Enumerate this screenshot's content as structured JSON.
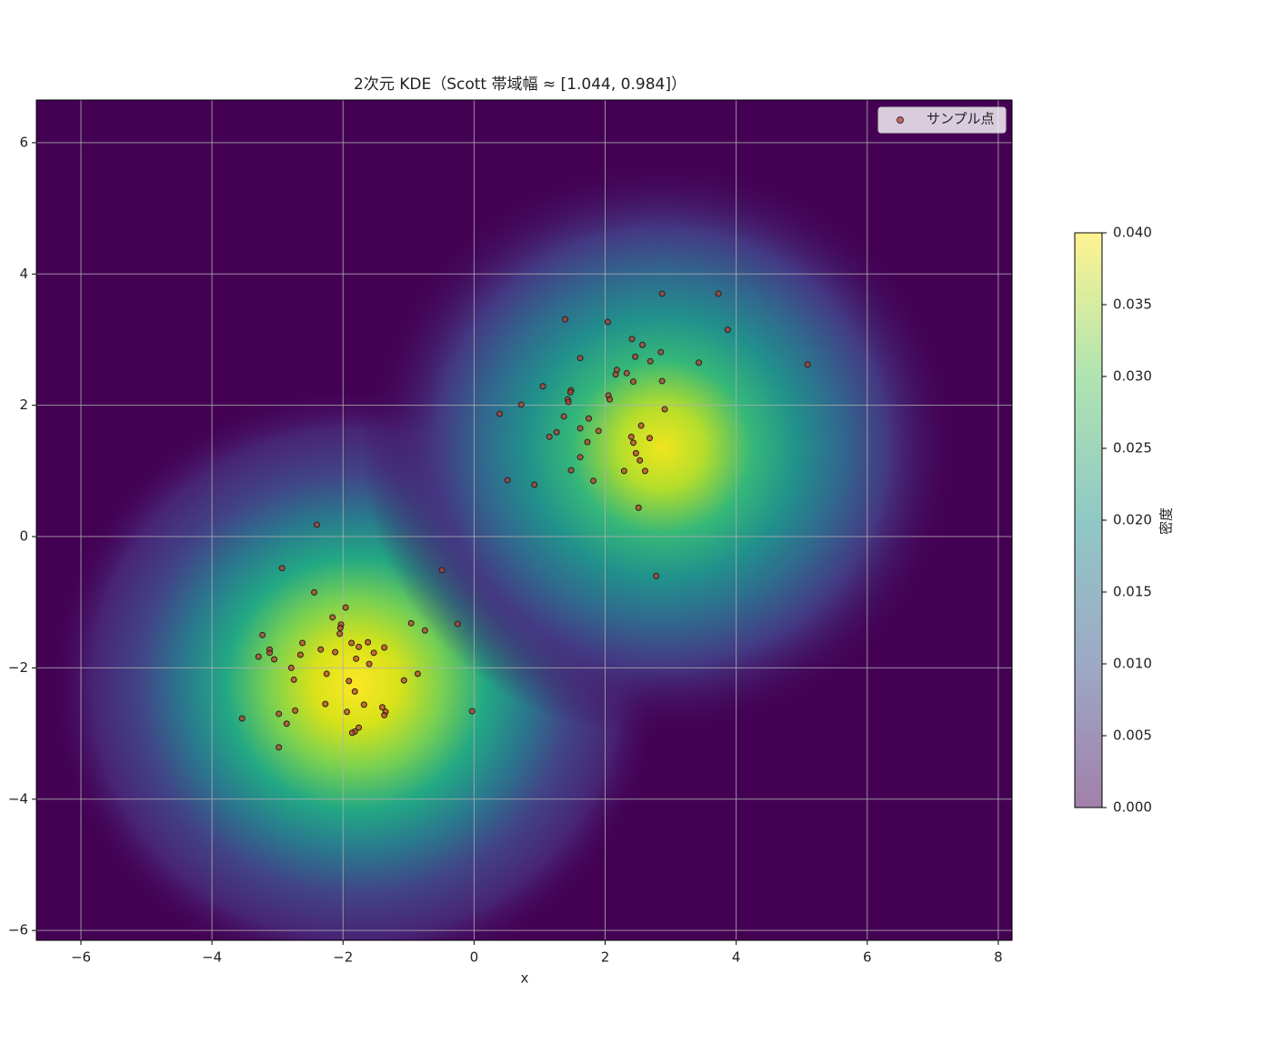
{
  "chart_data": {
    "type": "scatter",
    "title": "2次元 KDE（Scott 帯域幅 ≈ [1.044, 0.984]）",
    "x_label": "x",
    "xlim": [
      -6.68,
      8.21
    ],
    "ylim": [
      -6.15,
      6.65
    ],
    "xticks": [
      {
        "value": -6,
        "label": "−6"
      },
      {
        "value": -4,
        "label": "−4"
      },
      {
        "value": -2,
        "label": "−2"
      },
      0,
      2,
      4,
      6,
      8
    ],
    "yticks": [
      {
        "value": -6,
        "label": "−6"
      },
      {
        "value": -4,
        "label": "−4"
      },
      {
        "value": -2,
        "label": "−2"
      },
      0,
      2,
      4,
      6
    ],
    "grid": true,
    "legend": "upper right",
    "series": [
      {
        "name": "サンプル点",
        "color": "#c0392b",
        "x": [
          1.39,
          2.04,
          2.87,
          3.73,
          3.87,
          5.09,
          3.43,
          2.41,
          2.57,
          2.85,
          1.62,
          2.46,
          2.69,
          2.18,
          2.16,
          2.33,
          2.43,
          2.87,
          1.05,
          1.48,
          1.47,
          1.43,
          1.44,
          2.05,
          2.07,
          0.72,
          2.91,
          0.39,
          1.37,
          1.75,
          2.55,
          1.26,
          1.62,
          1.9,
          1.15,
          2.4,
          2.68,
          1.73,
          2.43,
          2.47,
          1.62,
          2.53,
          1.48,
          2.29,
          2.61,
          1.82,
          0.51,
          0.92,
          2.51,
          2.78,
          -2.4,
          -2.93,
          -0.49,
          -2.44,
          -1.96,
          -2.16,
          -0.96,
          -0.25,
          -2.03,
          -2.04,
          -0.75,
          -3.23,
          -2.05,
          -1.62,
          -1.87,
          -2.62,
          -1.76,
          -1.37,
          -3.12,
          -2.34,
          -2.12,
          -1.53,
          -3.12,
          -2.65,
          -3.29,
          -3.05,
          -1.8,
          -1.6,
          -2.79,
          -2.25,
          -0.86,
          -2.75,
          -1.91,
          -1.07,
          -1.82,
          -1.68,
          -2.27,
          -1.4,
          -1.35,
          -1.37,
          -2.73,
          -1.94,
          -0.03,
          -2.98,
          -3.54,
          -2.86,
          -1.76,
          -1.82,
          -1.86,
          -2.98
        ],
        "values": [
          3.31,
          3.27,
          3.7,
          3.7,
          3.15,
          2.62,
          2.65,
          3.01,
          2.92,
          2.81,
          2.72,
          2.74,
          2.67,
          2.54,
          2.47,
          2.49,
          2.36,
          2.37,
          2.29,
          2.23,
          2.2,
          2.09,
          2.05,
          2.15,
          2.09,
          2.01,
          1.94,
          1.87,
          1.83,
          1.8,
          1.69,
          1.59,
          1.65,
          1.61,
          1.52,
          1.52,
          1.5,
          1.44,
          1.43,
          1.27,
          1.21,
          1.16,
          1.01,
          1.0,
          1.0,
          0.85,
          0.86,
          0.79,
          0.44,
          -0.6,
          0.18,
          -0.48,
          -0.51,
          -0.85,
          -1.08,
          -1.23,
          -1.32,
          -1.33,
          -1.34,
          -1.39,
          -1.43,
          -1.5,
          -1.48,
          -1.61,
          -1.62,
          -1.62,
          -1.68,
          -1.69,
          -1.72,
          -1.72,
          -1.76,
          -1.77,
          -1.77,
          -1.8,
          -1.83,
          -1.87,
          -1.86,
          -1.94,
          -2.0,
          -2.09,
          -2.09,
          -2.18,
          -2.2,
          -2.19,
          -2.36,
          -2.56,
          -2.55,
          -2.6,
          -2.67,
          -2.72,
          -2.65,
          -2.67,
          -2.66,
          -2.7,
          -2.77,
          -2.85,
          -2.91,
          -2.97,
          -2.99,
          -3.21
        ]
      }
    ],
    "colorbar": {
      "label": "密度",
      "lim": [
        0,
        0.04
      ],
      "ticks": [
        {
          "value": 0,
          "label": "0.000"
        },
        {
          "value": 0.005,
          "label": "0.005"
        },
        {
          "value": 0.01,
          "label": "0.010"
        },
        {
          "value": 0.015,
          "label": "0.015"
        },
        {
          "value": 0.02,
          "label": "0.020"
        },
        {
          "value": 0.025,
          "label": "0.025"
        },
        {
          "value": 0.03,
          "label": "0.030"
        },
        {
          "value": 0.035,
          "label": "0.035"
        },
        {
          "value": 0.04,
          "label": "0.040"
        }
      ]
    }
  }
}
